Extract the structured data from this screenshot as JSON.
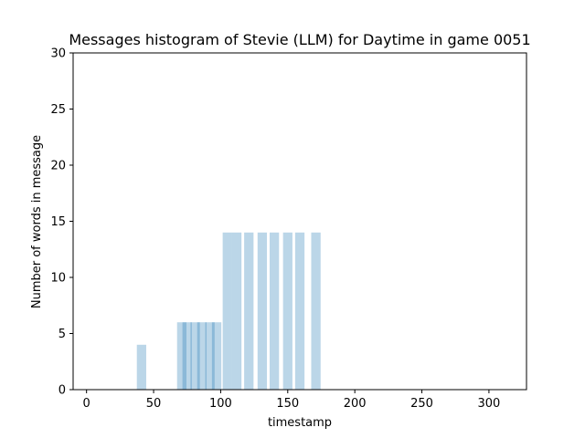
{
  "chart_data": {
    "type": "bar",
    "title": "Messages histogram of Stevie (LLM) for Daytime in game 0051",
    "xlabel": "timestamp",
    "ylabel": "Number of words in message",
    "xlim": [
      -10,
      328
    ],
    "ylim": [
      0,
      30
    ],
    "xticks": [
      0,
      50,
      100,
      150,
      200,
      250,
      300
    ],
    "yticks": [
      0,
      5,
      10,
      15,
      20,
      25,
      30
    ],
    "bar_color": "#1f77b4",
    "bar_opacity": 0.3,
    "bar_width": 7,
    "grid": false,
    "series": [
      {
        "x": [
          41,
          71,
          75,
          81,
          86,
          92,
          97,
          105,
          112,
          121,
          131,
          140,
          150,
          159,
          171
        ],
        "values": [
          4,
          6,
          6,
          6,
          6,
          6,
          6,
          14,
          14,
          14,
          14,
          14,
          14,
          14,
          14
        ]
      }
    ]
  }
}
